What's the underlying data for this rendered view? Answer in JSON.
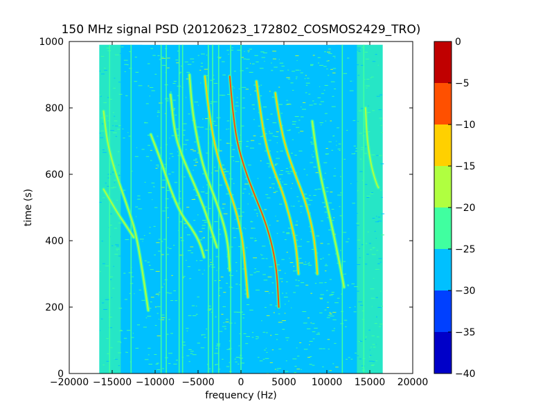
{
  "chart_data": {
    "type": "heatmap",
    "title": "150 MHz signal PSD (20120623_172802_COSMOS2429_TRO)",
    "xlabel": "frequency (Hz)",
    "ylabel": "time (s)",
    "xlim": [
      -20000,
      20000
    ],
    "ylim": [
      0,
      1000
    ],
    "xticks": [
      -20000,
      -15000,
      -10000,
      -5000,
      0,
      5000,
      10000,
      15000,
      20000
    ],
    "yticks": [
      0,
      200,
      400,
      600,
      800,
      1000
    ],
    "data_extent": {
      "x": [
        -16500,
        16500
      ],
      "y": [
        0,
        990
      ]
    },
    "background_level": -27,
    "colorbar": {
      "range": [
        -40,
        0
      ],
      "ticks": [
        0,
        -5,
        -10,
        -15,
        -20,
        -25,
        -30,
        -35,
        -40
      ],
      "levels": [
        {
          "min": -40,
          "max": -35,
          "color": "#0000c8"
        },
        {
          "min": -35,
          "max": -30,
          "color": "#0040ff"
        },
        {
          "min": -30,
          "max": -25,
          "color": "#00c0ff"
        },
        {
          "min": -25,
          "max": -20,
          "color": "#40ffa0"
        },
        {
          "min": -20,
          "max": -15,
          "color": "#b0ff40"
        },
        {
          "min": -15,
          "max": -10,
          "color": "#ffd000"
        },
        {
          "min": -10,
          "max": -5,
          "color": "#ff5000"
        },
        {
          "min": -5,
          "max": 0,
          "color": "#c00000"
        }
      ]
    },
    "noise_bands": [
      {
        "x": [
          -16500,
          -14000
        ],
        "level": -23
      },
      {
        "x": [
          -14000,
          -11500
        ],
        "level": -26
      },
      {
        "x": [
          11000,
          13500
        ],
        "level": -26
      },
      {
        "x": [
          13500,
          16500
        ],
        "level": -23
      }
    ],
    "vertical_lines": [
      {
        "x": -15300,
        "level": -22
      },
      {
        "x": -12800,
        "level": -22
      },
      {
        "x": -9300,
        "level": -21
      },
      {
        "x": -8700,
        "level": -21
      },
      {
        "x": -7200,
        "level": -22
      },
      {
        "x": -6800,
        "level": -22
      },
      {
        "x": -3800,
        "level": -22
      },
      {
        "x": -3300,
        "level": -22
      },
      {
        "x": -2600,
        "level": -22
      },
      {
        "x": -1200,
        "level": -21
      },
      {
        "x": 0,
        "level": -22
      },
      {
        "x": 11800,
        "level": -22
      },
      {
        "x": 14300,
        "level": -22
      }
    ],
    "traces": [
      {
        "level": -18,
        "points": [
          [
            -16000,
            790
          ],
          [
            -15600,
            700
          ],
          [
            -14800,
            620
          ],
          [
            -14000,
            560
          ],
          [
            -13200,
            500
          ],
          [
            -12300,
            430
          ],
          [
            -11600,
            330
          ],
          [
            -10800,
            190
          ]
        ]
      },
      {
        "level": -18,
        "points": [
          [
            -16000,
            555
          ],
          [
            -15200,
            520
          ],
          [
            -14300,
            480
          ],
          [
            -13500,
            450
          ],
          [
            -12500,
            410
          ]
        ]
      },
      {
        "level": -18,
        "points": [
          [
            -10500,
            720
          ],
          [
            -9300,
            640
          ],
          [
            -8300,
            560
          ],
          [
            -7000,
            480
          ],
          [
            -5800,
            440
          ],
          [
            -4800,
            395
          ],
          [
            -4300,
            350
          ]
        ]
      },
      {
        "level": -18,
        "points": [
          [
            -8200,
            840
          ],
          [
            -7700,
            720
          ],
          [
            -6800,
            650
          ],
          [
            -5600,
            580
          ],
          [
            -4300,
            500
          ],
          [
            -3300,
            420
          ],
          [
            -2800,
            380
          ]
        ]
      },
      {
        "level": -16,
        "points": [
          [
            -6000,
            900
          ],
          [
            -5700,
            800
          ],
          [
            -5200,
            720
          ],
          [
            -4400,
            620
          ],
          [
            -3200,
            540
          ],
          [
            -2100,
            460
          ],
          [
            -1500,
            390
          ],
          [
            -1300,
            310
          ]
        ]
      },
      {
        "level": -14,
        "points": [
          [
            -4200,
            895
          ],
          [
            -3800,
            800
          ],
          [
            -3100,
            690
          ],
          [
            -2100,
            600
          ],
          [
            -900,
            520
          ],
          [
            100,
            420
          ],
          [
            500,
            320
          ],
          [
            800,
            230
          ]
        ]
      },
      {
        "level": -8,
        "points": [
          [
            -1300,
            895
          ],
          [
            -1000,
            800
          ],
          [
            -500,
            700
          ],
          [
            500,
            610
          ],
          [
            1700,
            530
          ],
          [
            2800,
            460
          ],
          [
            3700,
            380
          ],
          [
            4200,
            300
          ],
          [
            4400,
            200
          ]
        ]
      },
      {
        "level": -14,
        "points": [
          [
            1800,
            880
          ],
          [
            2200,
            800
          ],
          [
            2800,
            700
          ],
          [
            3700,
            620
          ],
          [
            4800,
            550
          ],
          [
            5700,
            470
          ],
          [
            6400,
            390
          ],
          [
            6700,
            300
          ]
        ]
      },
      {
        "level": -14,
        "points": [
          [
            4000,
            845
          ],
          [
            4500,
            760
          ],
          [
            5200,
            680
          ],
          [
            6300,
            600
          ],
          [
            7500,
            520
          ],
          [
            8300,
            440
          ],
          [
            8700,
            370
          ],
          [
            8900,
            300
          ]
        ]
      },
      {
        "level": -16,
        "points": [
          [
            8300,
            760
          ],
          [
            8700,
            680
          ],
          [
            9300,
            590
          ],
          [
            10000,
            510
          ],
          [
            10700,
            430
          ],
          [
            11500,
            330
          ],
          [
            12000,
            260
          ]
        ]
      },
      {
        "level": -18,
        "points": [
          [
            14500,
            800
          ],
          [
            14700,
            700
          ],
          [
            15200,
            620
          ],
          [
            15800,
            570
          ],
          [
            16000,
            560
          ]
        ]
      }
    ]
  }
}
